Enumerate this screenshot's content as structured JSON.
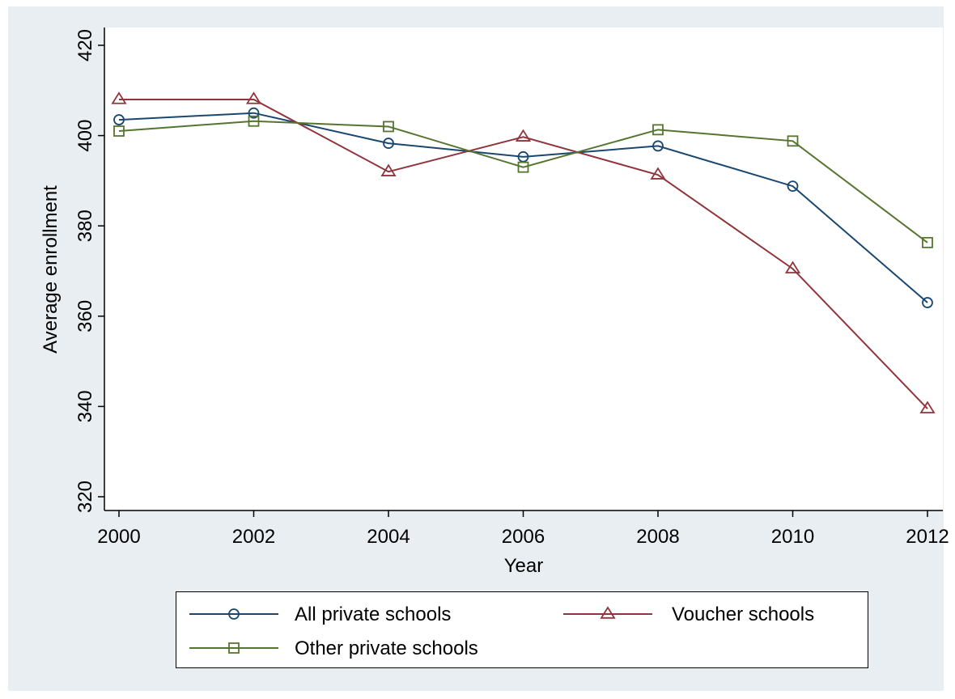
{
  "chart_data": {
    "type": "line",
    "title": "",
    "xlabel": "Year",
    "ylabel": "Average enrollment",
    "x": [
      2000,
      2002,
      2004,
      2006,
      2008,
      2010,
      2012
    ],
    "xlim": [
      2000,
      2012
    ],
    "ylim": [
      320,
      420
    ],
    "xticks": [
      "2000",
      "2002",
      "2004",
      "2006",
      "2008",
      "2010",
      "2012"
    ],
    "yticks": [
      "320",
      "340",
      "360",
      "380",
      "400",
      "420"
    ],
    "grid": false,
    "legend_position": "bottom",
    "background_color": "#e8eef2",
    "plot_background_color": "#ffffff",
    "series": [
      {
        "name": "All private schools",
        "marker": "circle",
        "color": "#1a476f",
        "values": [
          403.5,
          405,
          398.3,
          395.3,
          397.7,
          388.8,
          363
        ]
      },
      {
        "name": "Voucher schools",
        "marker": "triangle",
        "color": "#90353b",
        "values": [
          408,
          408,
          392,
          399.7,
          391.3,
          370.5,
          339.5
        ]
      },
      {
        "name": "Other private schools",
        "marker": "square",
        "color": "#55752f",
        "values": [
          401,
          403.2,
          402,
          393,
          401.3,
          398.8,
          376.3
        ]
      }
    ]
  }
}
